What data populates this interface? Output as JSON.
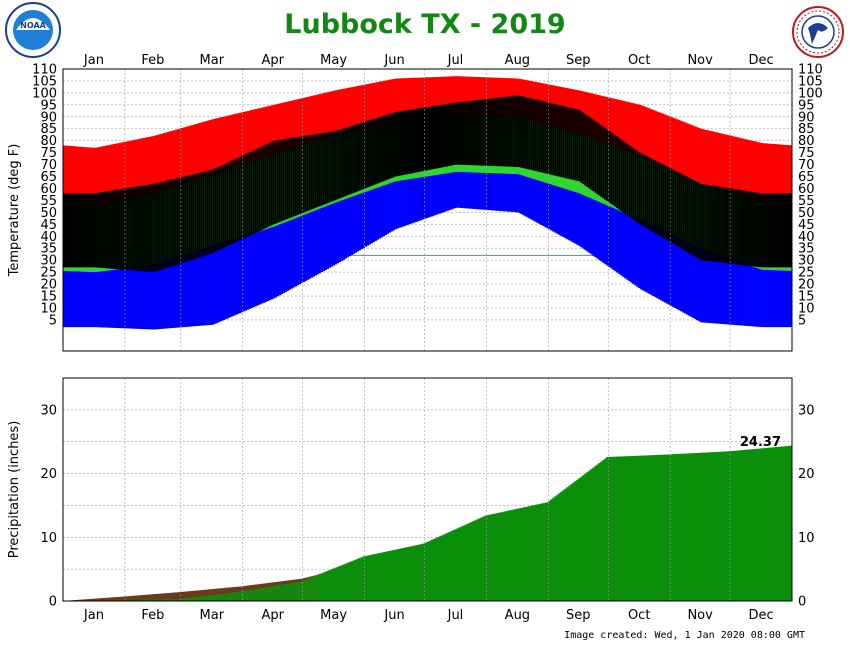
{
  "colors": {
    "title": "#118811",
    "record_high": "#ff0000",
    "normal_range": "#2ed62e",
    "observed": "#000000",
    "record_low": "#0000ff",
    "normal_precip": "#6b3a1a",
    "observed_precip": "#0a8f0a",
    "gridline": "#9a9a9a",
    "freezing_line": "#00b5b5"
  },
  "logos": {
    "left": {
      "name": "noaa-logo",
      "text": "NOAA"
    },
    "right": {
      "name": "nws-logo",
      "text": "NATIONAL WEATHER SERVICE"
    }
  },
  "chart_data": [
    {
      "type": "bar",
      "title": "Lubbock TX - 2019",
      "ylabel": "Temperature (deg F)",
      "ylim": [
        -8,
        110
      ],
      "y_ticks": [
        "5",
        "10",
        "15",
        "20",
        "25",
        "30",
        "35",
        "40",
        "45",
        "50",
        "55",
        "60",
        "65",
        "70",
        "75",
        "80",
        "85",
        "90",
        "95",
        "100",
        "105",
        "110"
      ],
      "x_ticks": [
        "Jan",
        "Feb",
        "Mar",
        "Apr",
        "May",
        "Jun",
        "Jul",
        "Aug",
        "Sep",
        "Oct",
        "Nov",
        "Dec"
      ],
      "grid": true,
      "reference_line": 32,
      "series": [
        {
          "key": "record_high",
          "x": [
            "Jan",
            "Feb",
            "Mar",
            "Apr",
            "May",
            "Jun",
            "Jul",
            "Aug",
            "Sep",
            "Oct",
            "Nov",
            "Dec"
          ],
          "values": [
            77,
            82,
            89,
            95,
            101,
            106,
            107,
            106,
            101,
            95,
            85,
            79
          ]
        },
        {
          "key": "normal_high",
          "x": [
            "Jan",
            "Feb",
            "Mar",
            "Apr",
            "May",
            "Jun",
            "Jul",
            "Aug",
            "Sep",
            "Oct",
            "Nov",
            "Dec"
          ],
          "values": [
            53,
            58,
            66,
            74,
            82,
            89,
            91,
            90,
            83,
            74,
            62,
            54
          ]
        },
        {
          "key": "normal_low",
          "x": [
            "Jan",
            "Feb",
            "Mar",
            "Apr",
            "May",
            "Jun",
            "Jul",
            "Aug",
            "Sep",
            "Oct",
            "Nov",
            "Dec"
          ],
          "values": [
            25,
            28,
            36,
            44,
            54,
            63,
            67,
            66,
            58,
            47,
            35,
            26
          ]
        },
        {
          "key": "record_low",
          "x": [
            "Jan",
            "Feb",
            "Mar",
            "Apr",
            "May",
            "Jun",
            "Jul",
            "Aug",
            "Sep",
            "Oct",
            "Nov",
            "Dec"
          ],
          "values": [
            2,
            1,
            3,
            14,
            28,
            43,
            52,
            50,
            36,
            18,
            4,
            2
          ]
        },
        {
          "key": "observed_high",
          "x": [
            "Jan",
            "Feb",
            "Mar",
            "Apr",
            "May",
            "Jun",
            "Jul",
            "Aug",
            "Sep",
            "Oct",
            "Nov",
            "Dec"
          ],
          "values": [
            58,
            62,
            68,
            80,
            84,
            92,
            96,
            99,
            93,
            75,
            62,
            58
          ]
        },
        {
          "key": "observed_low",
          "x": [
            "Jan",
            "Feb",
            "Mar",
            "Apr",
            "May",
            "Jun",
            "Jul",
            "Aug",
            "Sep",
            "Oct",
            "Nov",
            "Dec"
          ],
          "values": [
            27,
            25,
            33,
            45,
            55,
            65,
            70,
            69,
            63,
            45,
            30,
            27
          ]
        }
      ]
    },
    {
      "type": "area",
      "ylabel": "Precipitation (inches)",
      "ylim": [
        0,
        35
      ],
      "y_ticks": [
        "0",
        "10",
        "20",
        "30"
      ],
      "x_ticks": [
        "Jan",
        "Feb",
        "Mar",
        "Apr",
        "May",
        "Jun",
        "Jul",
        "Aug",
        "Sep",
        "Oct",
        "Nov",
        "Dec"
      ],
      "grid": true,
      "series": [
        {
          "key": "normal_precip",
          "x": [
            "Jan 1",
            "Jan 31",
            "Feb 28",
            "Mar 31",
            "Apr 30",
            "May 31",
            "Jun 30",
            "Jul 31",
            "Aug 31",
            "Sep 30",
            "Oct 31",
            "Nov 30",
            "Dec 31"
          ],
          "values": [
            0,
            0.7,
            1.4,
            2.3,
            3.5,
            5.9,
            9.0,
            11.0,
            13.2,
            16.0,
            17.6,
            18.5,
            19.2
          ]
        },
        {
          "key": "observed_precip",
          "x": [
            "Jan 1",
            "Jan 31",
            "Feb 28",
            "Mar 31",
            "Apr 30",
            "May 31",
            "Jun 30",
            "Jul 31",
            "Aug 31",
            "Sep 30",
            "Oct 31",
            "Nov 30",
            "Dec 31"
          ],
          "values": [
            0,
            0.1,
            0.3,
            1.5,
            3.1,
            7.0,
            9.0,
            13.4,
            15.5,
            22.6,
            23.0,
            23.5,
            24.37
          ]
        }
      ],
      "annotation": "24.37"
    }
  ],
  "footer": "Image created: Wed, 1 Jan 2020 08:00 GMT"
}
